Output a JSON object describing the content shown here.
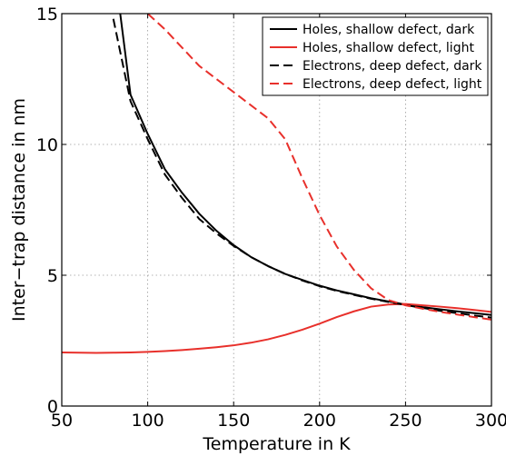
{
  "chart_data": {
    "type": "line",
    "title": "",
    "xlabel": "Temperature in K",
    "ylabel": "Inter−trap distance in nm",
    "xlim": [
      50,
      300
    ],
    "ylim": [
      0,
      15
    ],
    "x_ticks": [
      50,
      100,
      150,
      200,
      250,
      300
    ],
    "y_ticks": [
      0,
      5,
      10,
      15
    ],
    "x_tick_labels": [
      "50",
      "100",
      "150",
      "200",
      "250",
      "300"
    ],
    "y_tick_labels": [
      "0",
      "5",
      "10",
      "15"
    ],
    "grid": true,
    "legend_position": "top-right",
    "series": [
      {
        "name": "Holes, shallow defect, dark",
        "color": "#000000",
        "dash": "solid",
        "x": [
          84,
          90,
          100,
          110,
          120,
          130,
          140,
          150,
          160,
          170,
          180,
          190,
          200,
          210,
          220,
          230,
          240,
          250,
          260,
          270,
          280,
          290,
          300
        ],
        "y": [
          15,
          11.9,
          10.4,
          9.05,
          8.15,
          7.35,
          6.7,
          6.15,
          5.7,
          5.35,
          5.05,
          4.82,
          4.6,
          4.42,
          4.27,
          4.12,
          4.0,
          3.88,
          3.78,
          3.7,
          3.62,
          3.55,
          3.48
        ]
      },
      {
        "name": "Holes, shallow defect, light",
        "color": "#e8302b",
        "dash": "solid",
        "x": [
          50,
          60,
          70,
          80,
          90,
          100,
          110,
          120,
          130,
          140,
          150,
          160,
          170,
          180,
          190,
          200,
          210,
          220,
          230,
          240,
          250,
          260,
          270,
          280,
          290,
          300
        ],
        "y": [
          2.05,
          2.04,
          2.03,
          2.04,
          2.05,
          2.07,
          2.1,
          2.14,
          2.19,
          2.25,
          2.32,
          2.42,
          2.55,
          2.72,
          2.92,
          3.15,
          3.4,
          3.62,
          3.8,
          3.88,
          3.9,
          3.85,
          3.8,
          3.74,
          3.67,
          3.6
        ]
      },
      {
        "name": "Electrons, deep defect, dark",
        "color": "#000000",
        "dash": "dashed",
        "x": [
          80,
          90,
          100,
          110,
          120,
          130,
          140,
          150,
          160,
          170,
          180,
          190,
          200,
          210,
          220,
          230,
          240,
          250,
          260,
          270,
          280,
          290,
          300
        ],
        "y": [
          14.8,
          11.65,
          10.2,
          8.85,
          7.95,
          7.15,
          6.6,
          6.12,
          5.7,
          5.35,
          5.05,
          4.8,
          4.58,
          4.4,
          4.25,
          4.1,
          3.98,
          3.86,
          3.75,
          3.64,
          3.55,
          3.46,
          3.38
        ]
      },
      {
        "name": "Electrons, deep defect, light",
        "color": "#e8302b",
        "dash": "dashed",
        "x": [
          100,
          110,
          120,
          130,
          140,
          150,
          160,
          170,
          180,
          190,
          200,
          210,
          220,
          230,
          240,
          250,
          260,
          270,
          280,
          290,
          300
        ],
        "y": [
          15,
          14.4,
          13.7,
          13.0,
          12.5,
          12.0,
          11.5,
          11.0,
          10.2,
          8.7,
          7.3,
          6.1,
          5.2,
          4.5,
          4.05,
          3.85,
          3.72,
          3.6,
          3.5,
          3.4,
          3.3
        ]
      }
    ]
  }
}
